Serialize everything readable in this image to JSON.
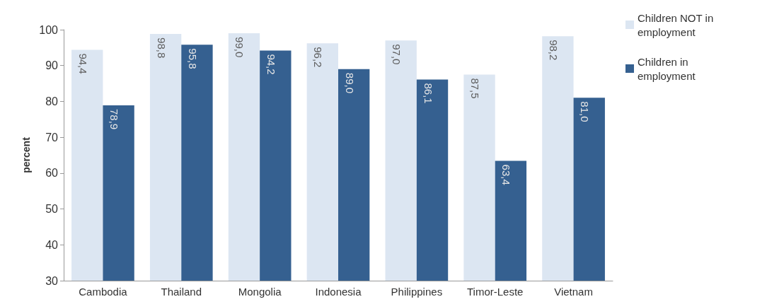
{
  "chart_data": {
    "type": "bar",
    "ylabel": "percent",
    "categories": [
      "Cambodia",
      "Thailand",
      "Mongolia",
      "Indonesia",
      "Philippines",
      "Timor-Leste",
      "Vietnam"
    ],
    "series": [
      {
        "name": "Children NOT in employment",
        "color": "#dce6f2",
        "values": [
          94.4,
          98.8,
          99.0,
          96.2,
          97.0,
          87.5,
          98.2
        ],
        "value_labels": [
          "94,4",
          "98,8",
          "99,0",
          "96,2",
          "97,0",
          "87,5",
          "98,2"
        ]
      },
      {
        "name": "Children in employment",
        "color": "#356090",
        "values": [
          78.9,
          95.8,
          94.2,
          89.0,
          86.1,
          63.4,
          81.0
        ],
        "value_labels": [
          "78,9",
          "95,8",
          "94,2",
          "89,0",
          "86,1",
          "63,4",
          "81,0"
        ]
      }
    ],
    "ylim": [
      30,
      100
    ],
    "yticks": [
      30,
      40,
      50,
      60,
      70,
      80,
      90,
      100
    ],
    "grid": false,
    "legend": "top right"
  }
}
